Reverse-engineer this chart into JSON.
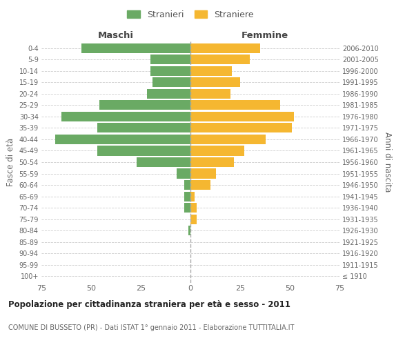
{
  "age_groups": [
    "100+",
    "95-99",
    "90-94",
    "85-89",
    "80-84",
    "75-79",
    "70-74",
    "65-69",
    "60-64",
    "55-59",
    "50-54",
    "45-49",
    "40-44",
    "35-39",
    "30-34",
    "25-29",
    "20-24",
    "15-19",
    "10-14",
    "5-9",
    "0-4"
  ],
  "birth_years": [
    "≤ 1910",
    "1911-1915",
    "1916-1920",
    "1921-1925",
    "1926-1930",
    "1931-1935",
    "1936-1940",
    "1941-1945",
    "1946-1950",
    "1951-1955",
    "1956-1960",
    "1961-1965",
    "1966-1970",
    "1971-1975",
    "1976-1980",
    "1981-1985",
    "1986-1990",
    "1991-1995",
    "1996-2000",
    "2001-2005",
    "2006-2010"
  ],
  "maschi": [
    0,
    0,
    0,
    0,
    1,
    0,
    3,
    3,
    3,
    7,
    27,
    47,
    68,
    47,
    65,
    46,
    22,
    19,
    20,
    20,
    55
  ],
  "femmine": [
    0,
    0,
    0,
    0,
    0,
    3,
    3,
    2,
    10,
    13,
    22,
    27,
    38,
    51,
    52,
    45,
    20,
    25,
    21,
    30,
    35
  ],
  "male_color": "#6aaa64",
  "female_color": "#f5b731",
  "xlim": 75,
  "title": "Popolazione per cittadinanza straniera per età e sesso - 2011",
  "subtitle": "COMUNE DI BUSSETO (PR) - Dati ISTAT 1° gennaio 2011 - Elaborazione TUTTITALIA.IT",
  "ylabel_left": "Fasce di età",
  "ylabel_right": "Anni di nascita",
  "legend_male": "Stranieri",
  "legend_female": "Straniere",
  "header_male": "Maschi",
  "header_female": "Femmine",
  "bg_color": "#ffffff",
  "grid_color": "#cccccc",
  "bar_height": 0.85
}
